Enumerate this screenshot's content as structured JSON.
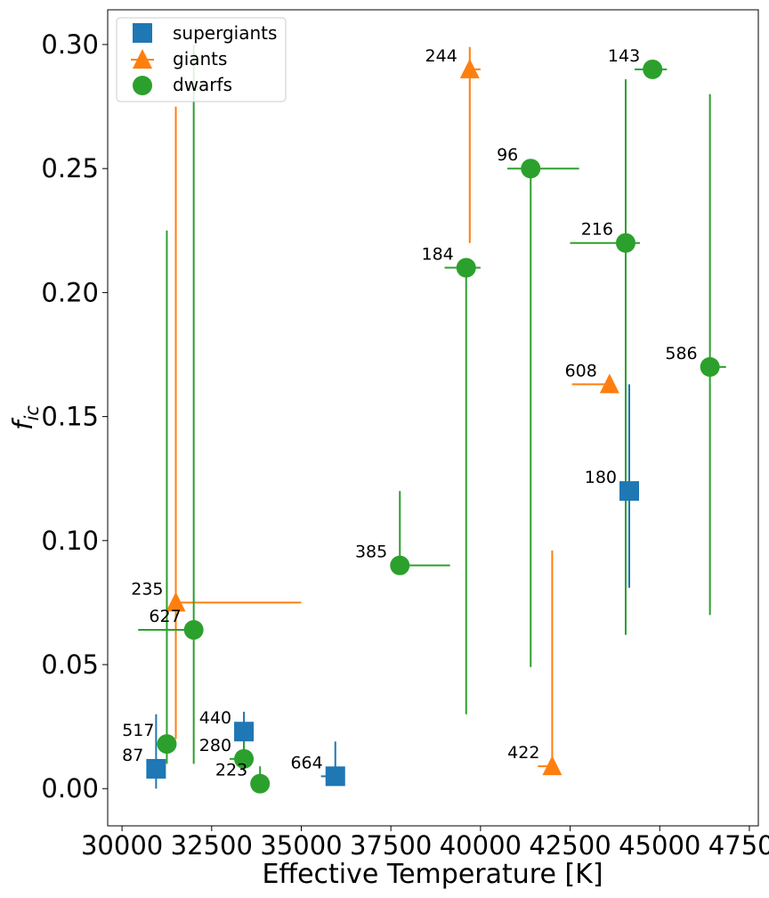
{
  "chart_data": {
    "type": "scatter",
    "title": "",
    "xlabel": "Effective Temperature [K]",
    "ylabel": "f_ic",
    "ylabel_main": "f",
    "ylabel_sub": "ic",
    "xlim": [
      29600,
      47750
    ],
    "ylim": [
      -0.015,
      0.314
    ],
    "xticks": [
      30000,
      32500,
      35000,
      37500,
      40000,
      42500,
      45000,
      47500
    ],
    "xtick_labels": [
      "30000",
      "32500",
      "35000",
      "37500",
      "40000",
      "42500",
      "45000",
      "47500"
    ],
    "yticks": [
      0.0,
      0.05,
      0.1,
      0.15,
      0.2,
      0.25,
      0.3
    ],
    "ytick_labels": [
      "0.00",
      "0.05",
      "0.10",
      "0.15",
      "0.20",
      "0.25",
      "0.30"
    ],
    "legend_position": "top-left",
    "series": [
      {
        "name": "supergiants",
        "marker": "square",
        "color": "#1f77b4",
        "points": [
          {
            "label": "87",
            "x": 30950,
            "y": 0.008,
            "xerr": [
              30950,
              30950
            ],
            "yerr": [
              0.0,
              0.03
            ]
          },
          {
            "label": "440",
            "x": 33400,
            "y": 0.023,
            "xerr": [
              33400,
              33400
            ],
            "yerr": [
              0.013,
              0.031
            ]
          },
          {
            "label": "664",
            "x": 35950,
            "y": 0.005,
            "xerr": [
              35550,
              35950
            ],
            "yerr": [
              0.005,
              0.019
            ]
          },
          {
            "label": "180",
            "x": 44150,
            "y": 0.12,
            "xerr": [
              44150,
              44150
            ],
            "yerr": [
              0.081,
              0.163
            ]
          }
        ]
      },
      {
        "name": "giants",
        "marker": "triangle",
        "color": "#ff7f0e",
        "points": [
          {
            "label": "235",
            "x": 31500,
            "y": 0.075,
            "xerr": [
              31500,
              35000
            ],
            "yerr": [
              0.02,
              0.275
            ]
          },
          {
            "label": "244",
            "x": 39700,
            "y": 0.29,
            "xerr": [
              39700,
              40000
            ],
            "yerr": [
              0.22,
              0.299
            ]
          },
          {
            "label": "422",
            "x": 42000,
            "y": 0.009,
            "xerr": [
              41600,
              42000
            ],
            "yerr": [
              0.009,
              0.096
            ]
          },
          {
            "label": "608",
            "x": 43600,
            "y": 0.163,
            "xerr": [
              42550,
              43600
            ],
            "yerr": [
              0.163,
              0.163
            ]
          }
        ]
      },
      {
        "name": "dwarfs",
        "marker": "circle",
        "color": "#2ca02c",
        "points": [
          {
            "label": "517",
            "x": 31250,
            "y": 0.018,
            "xerr": [
              31250,
              31250
            ],
            "yerr": [
              0.01,
              0.225
            ]
          },
          {
            "label": "627",
            "x": 32000,
            "y": 0.064,
            "xerr": [
              30450,
              32000
            ],
            "yerr": [
              0.01,
              0.3
            ]
          },
          {
            "label": "280",
            "x": 33400,
            "y": 0.012,
            "xerr": [
              33000,
              33400
            ],
            "yerr": [
              0.007,
              0.024
            ]
          },
          {
            "label": "223",
            "x": 33850,
            "y": 0.002,
            "xerr": [
              33850,
              33850
            ],
            "yerr": [
              0.0,
              0.009
            ]
          },
          {
            "label": "385",
            "x": 37750,
            "y": 0.09,
            "xerr": [
              37750,
              39150
            ],
            "yerr": [
              0.09,
              0.12
            ]
          },
          {
            "label": "184",
            "x": 39600,
            "y": 0.21,
            "xerr": [
              39000,
              40000
            ],
            "yerr": [
              0.03,
              0.21
            ]
          },
          {
            "label": "96",
            "x": 41400,
            "y": 0.25,
            "xerr": [
              40750,
              42750
            ],
            "yerr": [
              0.049,
              0.25
            ]
          },
          {
            "label": "216",
            "x": 44050,
            "y": 0.22,
            "xerr": [
              42500,
              44450
            ],
            "yerr": [
              0.062,
              0.286
            ]
          },
          {
            "label": "143",
            "x": 44800,
            "y": 0.29,
            "xerr": [
              44300,
              45200
            ],
            "yerr": [
              0.29,
              0.29
            ]
          },
          {
            "label": "586",
            "x": 46400,
            "y": 0.17,
            "xerr": [
              46400,
              46850
            ],
            "yerr": [
              0.07,
              0.28
            ]
          }
        ]
      }
    ]
  }
}
